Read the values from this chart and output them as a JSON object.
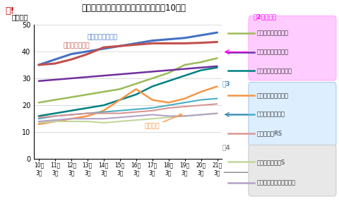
{
  "title": "マンション総合管理戸数の推移（上位10社）",
  "ylabel": "（万戸）",
  "xlabels": [
    "10年\n3月",
    "11年\n3月",
    "12年\n3月",
    "13年\n3月",
    "14年\n3月",
    "15年\n3月",
    "16年\n3月",
    "17年\n3月",
    "18年\n3月",
    "19年\n3月",
    "20年\n3月",
    "21年\n3月"
  ],
  "series": [
    {
      "name": "日本ハウズイング",
      "color": "#4472c4",
      "lw": 2.2,
      "data": [
        35,
        37,
        39,
        40,
        41,
        42,
        43,
        44,
        44.5,
        45,
        46,
        47
      ]
    },
    {
      "name": "大京アステージ",
      "color": "#c0504d",
      "lw": 2.2,
      "data": [
        35,
        35.5,
        37,
        39,
        41.5,
        42,
        42.5,
        43,
        43,
        43,
        43.2,
        43.5
      ]
    },
    {
      "name": "長谷工コミュニティ",
      "color": "#9bbb59",
      "lw": 1.8,
      "data": [
        21,
        22,
        23,
        24,
        25,
        26,
        28,
        30,
        32,
        35,
        36,
        37.5
      ]
    },
    {
      "name": "東急コミュニティー",
      "color": "#7030a0",
      "lw": 1.8,
      "data": [
        29,
        29.5,
        30,
        30.5,
        31,
        31.5,
        32,
        32.5,
        33,
        33.5,
        34,
        34.5
      ]
    },
    {
      "name": "三菱地所コミュニティ",
      "color": "#008080",
      "lw": 1.8,
      "data": [
        16,
        17,
        18,
        19,
        20,
        22,
        24,
        27,
        29,
        31,
        33,
        34
      ]
    },
    {
      "name": "大和ライフネクスト",
      "color": "#f79646",
      "lw": 1.8,
      "data": [
        13,
        14,
        15,
        16,
        18,
        22,
        26,
        22,
        21,
        22.5,
        25,
        27
      ]
    },
    {
      "name": "合人社計画研究所",
      "color": "#4bacc6",
      "lw": 1.5,
      "data": [
        15,
        16,
        16.5,
        17,
        17.5,
        18,
        18.5,
        19,
        20,
        21,
        22,
        22.5
      ]
    },
    {
      "name": "三井不動産RS",
      "color": "#d99694",
      "lw": 1.5,
      "data": [
        15.5,
        16,
        16.5,
        17,
        17,
        17,
        17.5,
        18,
        19,
        19.5,
        20,
        20.5
      ]
    },
    {
      "name": "住友不動産建物S",
      "color": "#c3d69b",
      "lw": 1.5,
      "data": [
        13.5,
        14,
        14,
        14,
        13.5,
        14,
        14.5,
        15,
        15.5,
        16,
        16.5,
        17
      ]
    },
    {
      "name": "野村不動産パートナーズ",
      "color": "#b2a2c7",
      "lw": 1.5,
      "data": [
        14,
        14.5,
        15,
        15,
        15,
        15.5,
        16,
        16.5,
        16,
        16,
        16.5,
        17
      ]
    }
  ],
  "ann_daikyo_text": "大京アステージ",
  "ann_daikyo_color": "#c0504d",
  "ann_nihon_text": "日本ハウズイング",
  "ann_nihon_color": "#4472c4",
  "ann_keiyaku_text": "契約辞退",
  "ann_keiyaku_color": "#f79646",
  "group2_label": "第2グループ",
  "group2_color": "#ff00ff",
  "group2_bg": "#ffccff",
  "group2_series": [
    "長谷工コミュニティ",
    "東急コミュニティー",
    "三菱地所コミュニティ"
  ],
  "group3_label": "第3",
  "group3_color": "#4488bb",
  "group3_bg": "#ddeeff",
  "group3_series": [
    "大和ライフネクスト",
    "合人社計画研究所",
    "三井不動産RS"
  ],
  "group4_label": "第4",
  "group4_color": "#888888",
  "group4_bg": "#e8e8e8",
  "group4_series": [
    "住友不動産建物S",
    "野村不動産パートナーズ"
  ],
  "ylim": [
    0,
    50
  ],
  "yticks": [
    0,
    10,
    20,
    30,
    40,
    50
  ],
  "bg_color": "#ffffff",
  "logo_text": "マ!",
  "logo_color": "#cc0000"
}
